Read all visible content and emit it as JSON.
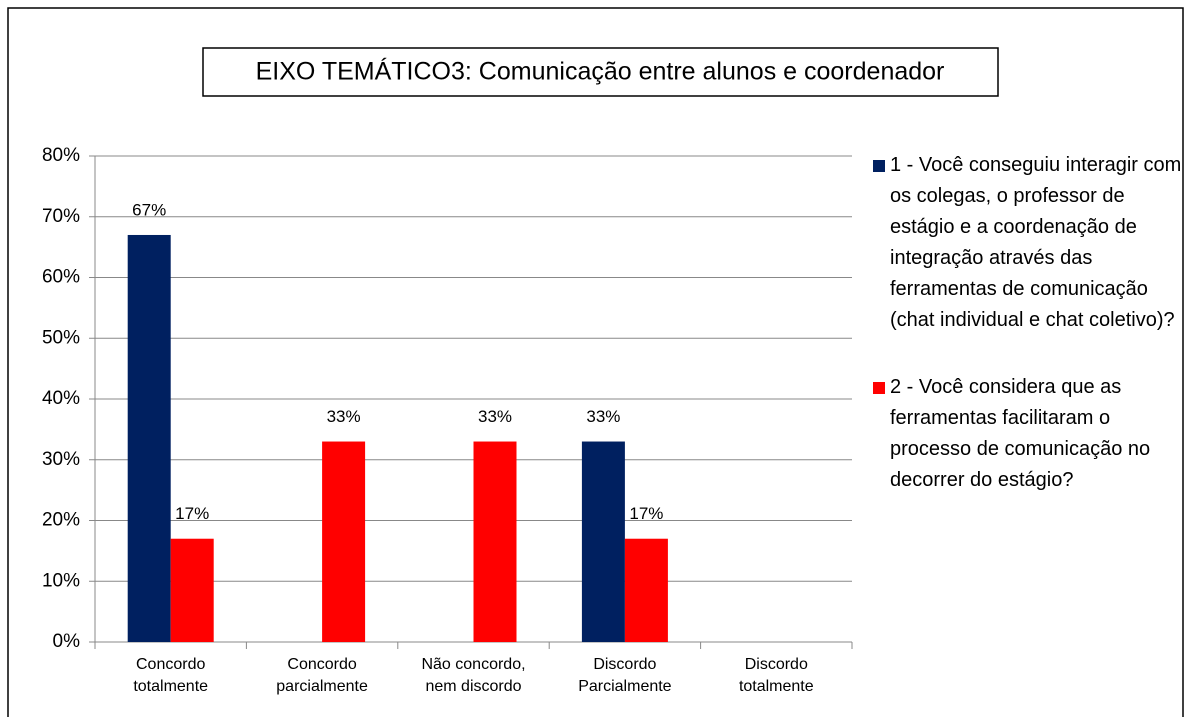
{
  "chart_data": {
    "type": "bar",
    "title": "EIXO TEMÁTICO3: Comunicação entre alunos e coordenador",
    "categories": [
      "Concordo totalmente",
      "Concordo parcialmente",
      "Não concordo, nem discordo",
      "Discordo Parcialmente",
      "Discordo totalmente"
    ],
    "series": [
      {
        "name": "1 - Você conseguiu interagir com os colegas, o professor de estágio e a coordenação de integração através das ferramentas de comunicação (chat individual e chat coletivo)?",
        "color": "#002060",
        "values": [
          67,
          null,
          null,
          33,
          null
        ],
        "value_labels": [
          "67%",
          null,
          null,
          "33%",
          null
        ]
      },
      {
        "name": "2  - Você considera que as ferramentas facilitaram o processo de comunicação no decorrer do estágio?",
        "color": "#ff0000",
        "values": [
          17,
          33,
          33,
          17,
          null
        ],
        "value_labels": [
          "17%",
          "33%",
          "33%",
          "17%",
          null
        ]
      }
    ],
    "ylim": [
      0,
      80
    ],
    "yticks": [
      {
        "value": 0,
        "label": "0%"
      },
      {
        "value": 10,
        "label": "10%"
      },
      {
        "value": 20,
        "label": "20%"
      },
      {
        "value": 30,
        "label": "30%"
      },
      {
        "value": 40,
        "label": "40%"
      },
      {
        "value": 50,
        "label": "50%"
      },
      {
        "value": 60,
        "label": "60%"
      },
      {
        "value": 70,
        "label": "70%"
      },
      {
        "value": 80,
        "label": "80%"
      }
    ],
    "grid": true,
    "legend": "right"
  }
}
